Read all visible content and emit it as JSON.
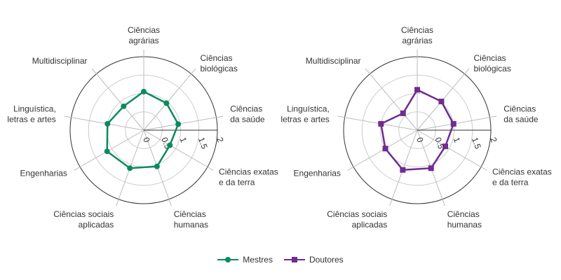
{
  "chart_data": [
    {
      "type": "radar",
      "categories": [
        "Ciências agrárias",
        "Ciências biológicas",
        "Ciências da saúde",
        "Ciências exatas e da terra",
        "Ciências humanas",
        "Ciências sociais aplicadas",
        "Engenharias",
        "Linguística, letras e artes",
        "Multidisciplinar"
      ],
      "series": [
        {
          "name": "Mestres",
          "values": [
            1.05,
            0.96,
            0.95,
            0.82,
            1.05,
            1.1,
            1.15,
            1.0,
            0.85
          ],
          "color": "#0b8a5f",
          "marker": "circle"
        }
      ],
      "radial_ticks": [
        "0",
        "0.5",
        "1",
        "1.5",
        "2"
      ],
      "rlim": [
        0,
        2
      ]
    },
    {
      "type": "radar",
      "categories": [
        "Ciências agrárias",
        "Ciências biológicas",
        "Ciências da saúde",
        "Ciências exatas e da terra",
        "Ciências humanas",
        "Ciências sociais aplicadas",
        "Engenharias",
        "Linguística, letras e artes",
        "Multidisciplinar"
      ],
      "series": [
        {
          "name": "Doutores",
          "values": [
            1.1,
            1.02,
            1.0,
            0.88,
            1.1,
            1.15,
            1.0,
            1.0,
            0.6
          ],
          "color": "#6f2c91",
          "marker": "square"
        }
      ],
      "radial_ticks": [
        "0",
        "0.5",
        "1",
        "1.5",
        "2"
      ],
      "rlim": [
        0,
        2
      ]
    }
  ],
  "legend": [
    {
      "name": "Mestres",
      "color": "#0b8a5f",
      "marker": "circle"
    },
    {
      "name": "Doutores",
      "color": "#6f2c91",
      "marker": "square"
    }
  ]
}
